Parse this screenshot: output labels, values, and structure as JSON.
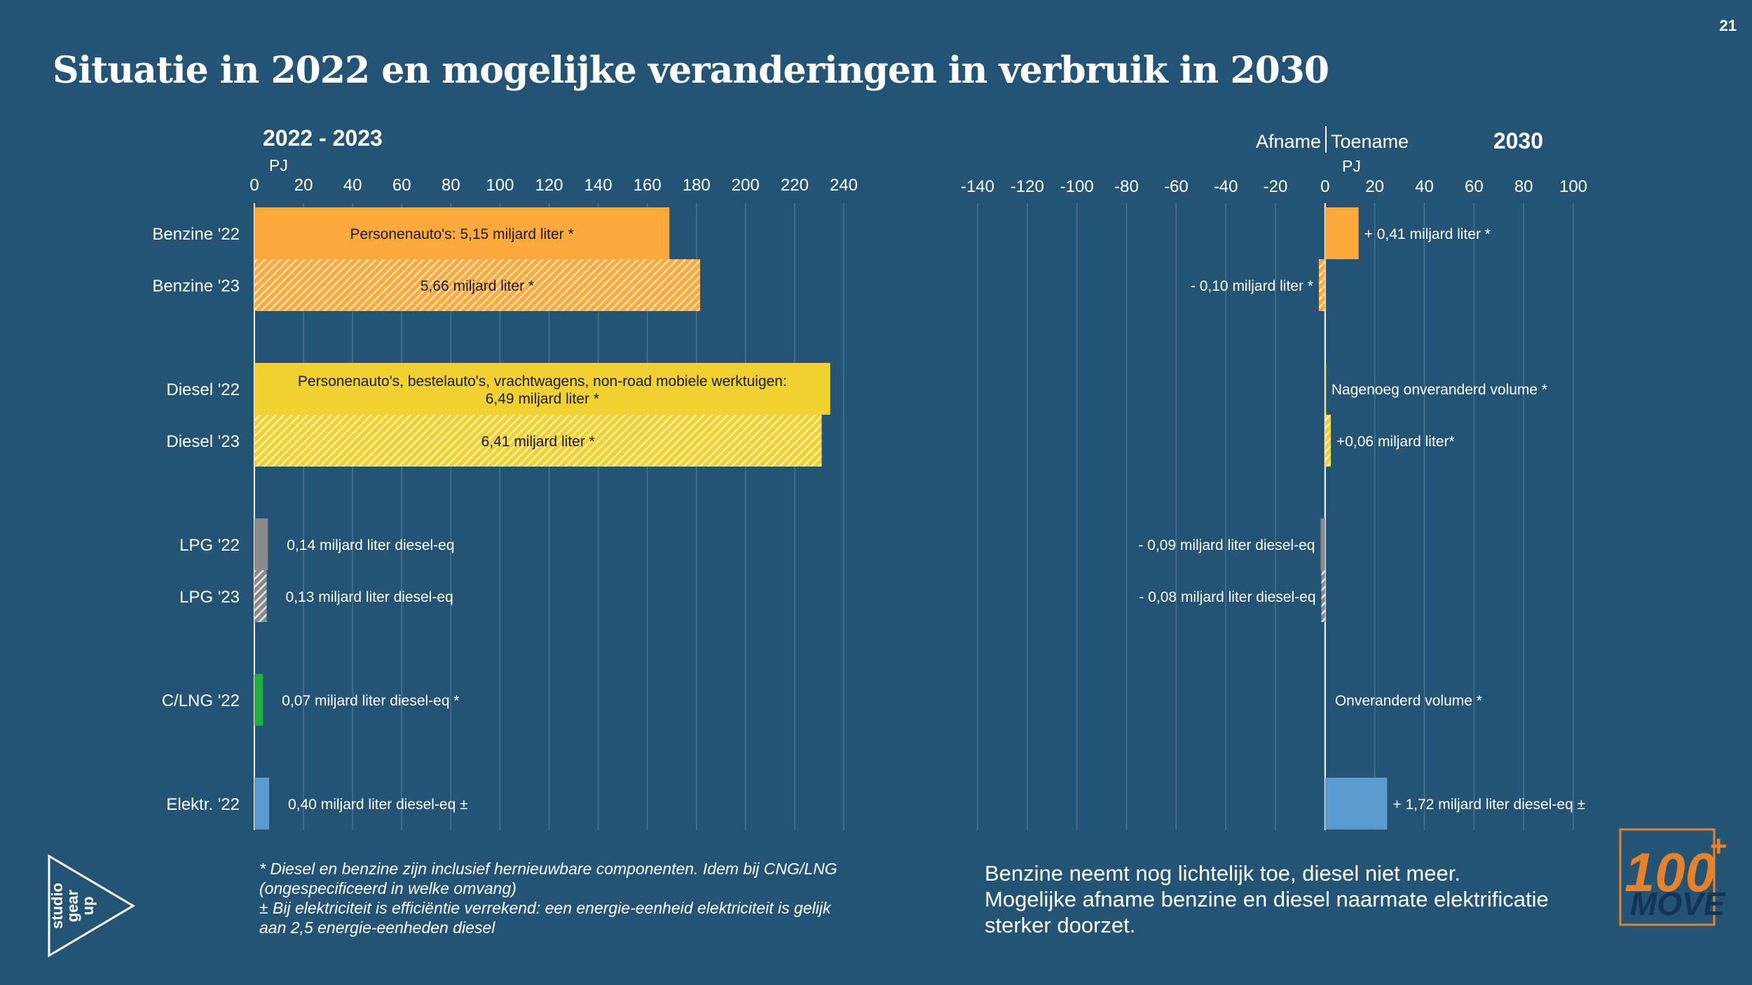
{
  "page_number": "21",
  "title": "Situatie in 2022 en mogelijke veranderingen in verbruik in 2030",
  "footnotes": [
    "* Diesel en benzine zijn inclusief hernieuwbare componenten. Idem bij CNG/LNG (ongespecificeerd in welke omvang)",
    "± Bij elektriciteit is efficiëntie verrekend: een energie-eenheid elektriciteit is gelijk aan 2,5 energie-eenheden diesel"
  ],
  "conclusion": [
    "Benzine neemt nog lichtelijk toe, diesel niet meer.",
    "Mogelijke afname benzine en diesel naarmate elektrificatie sterker doorzet."
  ],
  "logos": {
    "left": {
      "text": [
        "studio",
        "gear",
        "up"
      ]
    },
    "right": {
      "text": "100",
      "subtext": "MOVE",
      "mark": "+"
    }
  },
  "colors": {
    "background": "#235475",
    "benzine": "#fda93b",
    "diesel": "#f1d12f",
    "lpg": "#8a8a8a",
    "lng": "#1fb040",
    "elektr": "#5b9bd0",
    "grid": "#4a7391"
  },
  "chart_data": [
    {
      "type": "bar",
      "orientation": "horizontal",
      "title": "2022 - 2023",
      "unit": "PJ",
      "xlim": [
        0,
        240
      ],
      "ticks": [
        0,
        20,
        40,
        60,
        80,
        100,
        120,
        140,
        160,
        180,
        200,
        220,
        240
      ],
      "grid": true,
      "categories": [
        "Benzine '22",
        "Benzine '23",
        "Diesel '22",
        "Diesel '23",
        "LPG '22",
        "LPG '23",
        "C/LNG '22",
        "Elektr. '22"
      ],
      "values": [
        169,
        181.5,
        234.5,
        231,
        5.5,
        5,
        3.5,
        6
      ],
      "patterns": [
        "solid",
        "hatched",
        "solid",
        "hatched",
        "solid",
        "hatched",
        "solid",
        "solid"
      ],
      "color_keys": [
        "benzine",
        "benzine",
        "diesel",
        "diesel",
        "lpg",
        "lpg",
        "lng",
        "elektr"
      ],
      "labels": [
        [
          "Personenauto's: 5,15 miljard liter *"
        ],
        [
          "5,66 miljard liter *"
        ],
        [
          "Personenauto's, bestelauto's, vrachtwagens, non-road mobiele werktuigen:",
          "6,49 miljard liter *"
        ],
        [
          "6,41 miljard liter *"
        ],
        [
          "0,14 miljard liter diesel-eq"
        ],
        [
          "0,13 miljard liter diesel-eq"
        ],
        [
          "0,07 miljard liter diesel-eq *"
        ],
        [
          "0,40 miljard liter diesel-eq ±"
        ]
      ],
      "label_inside": [
        true,
        true,
        true,
        true,
        false,
        false,
        false,
        false
      ]
    },
    {
      "type": "bar",
      "orientation": "horizontal",
      "title": "2030",
      "side_labels": [
        "Afname",
        "Toename"
      ],
      "unit": "PJ",
      "xlim": [
        -140,
        100
      ],
      "ticks": [
        -140,
        -120,
        -100,
        -80,
        -60,
        -40,
        -20,
        0,
        20,
        40,
        60,
        80,
        100
      ],
      "grid": true,
      "categories": [
        "Benzine '22",
        "Benzine '23",
        "Diesel '22",
        "Diesel '23",
        "LPG '22",
        "LPG '23",
        "C/LNG '22",
        "Elektr. '22"
      ],
      "values": [
        13.5,
        -2.5,
        0.3,
        2.3,
        -1.8,
        -1.5,
        0,
        25
      ],
      "patterns": [
        "solid",
        "hatched",
        "solid",
        "hatched",
        "solid",
        "hatched",
        "solid",
        "solid"
      ],
      "color_keys": [
        "benzine",
        "benzine",
        "diesel",
        "diesel",
        "lpg",
        "lpg",
        "lng",
        "elektr"
      ],
      "labels": [
        "+ 0,41 miljard liter *",
        "- 0,10 miljard liter *",
        "Nagenoeg onveranderd volume *",
        "+0,06 miljard liter*",
        "- 0,09 miljard liter diesel-eq",
        "- 0,08 miljard liter diesel-eq",
        "Onveranderd volume *",
        "+ 1,72  miljard liter diesel-eq ±"
      ]
    }
  ]
}
